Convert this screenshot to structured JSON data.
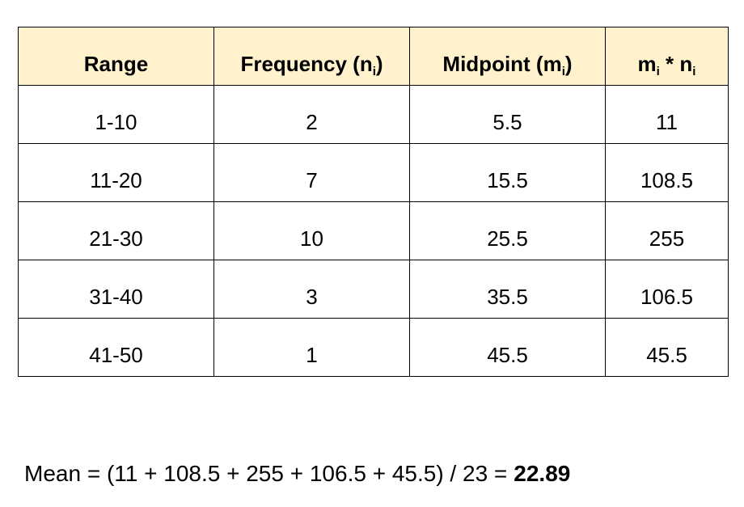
{
  "table": {
    "headers": [
      [
        "Range"
      ],
      [
        "Frequency (n",
        "i",
        ")"
      ],
      [
        "Midpoint (m",
        "i",
        ")"
      ],
      [
        "m",
        "i",
        " * n",
        "i"
      ]
    ],
    "rows": [
      [
        "1-10",
        "2",
        "5.5",
        "11"
      ],
      [
        "11-20",
        "7",
        "15.5",
        "108.5"
      ],
      [
        "21-30",
        "10",
        "25.5",
        "255"
      ],
      [
        "31-40",
        "3",
        "35.5",
        "106.5"
      ],
      [
        "41-50",
        "1",
        "45.5",
        "45.5"
      ]
    ]
  },
  "footer": {
    "formula": "Mean = (11 + 108.5 + 255 + 106.5 + 45.5) / 23 =",
    "result": "22.89"
  }
}
